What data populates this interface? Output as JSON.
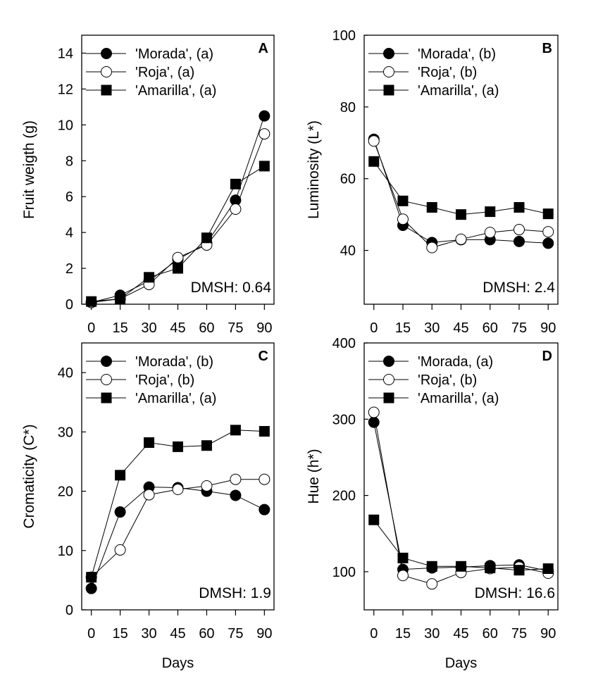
{
  "chart_data": [
    {
      "type": "line",
      "panel_label": "A",
      "xlabel": "",
      "ylabel": "Fruit weigth (g)",
      "x": [
        0,
        15,
        30,
        45,
        60,
        75,
        90
      ],
      "xlim": [
        -5,
        95
      ],
      "ylim": [
        0,
        15
      ],
      "yticks": [
        0,
        2,
        4,
        6,
        8,
        10,
        12,
        14
      ],
      "annotation": "DMSH: 0.64",
      "grid": false,
      "legend_position": "top-left",
      "series": [
        {
          "name": "'Morada', (a)",
          "marker": "filled-circle",
          "values": [
            0.1,
            0.5,
            1.3,
            2.5,
            3.4,
            5.8,
            10.5
          ]
        },
        {
          "name": "'Roja', (a)",
          "marker": "open-circle",
          "values": [
            0.1,
            0.3,
            1.1,
            2.6,
            3.3,
            5.3,
            9.5
          ]
        },
        {
          "name": "'Amarilla', (a)",
          "marker": "filled-square",
          "values": [
            0.15,
            0.3,
            1.5,
            2.0,
            3.7,
            6.7,
            7.7
          ]
        }
      ]
    },
    {
      "type": "line",
      "panel_label": "B",
      "xlabel": "",
      "ylabel": "Luminosity (L*)",
      "x": [
        0,
        15,
        30,
        45,
        60,
        75,
        90
      ],
      "xlim": [
        -5,
        95
      ],
      "ylim": [
        25,
        100
      ],
      "yticks": [
        40,
        60,
        80,
        100
      ],
      "annotation": "DMSH: 2.4",
      "grid": false,
      "legend_position": "top-left",
      "series": [
        {
          "name": "'Morada', (b)",
          "marker": "filled-circle",
          "values": [
            71,
            47,
            42.2,
            43,
            43,
            42.5,
            42
          ]
        },
        {
          "name": "'Roja', (b)",
          "marker": "open-circle",
          "values": [
            70.5,
            48.7,
            40.8,
            43.1,
            45,
            45.8,
            45.2
          ]
        },
        {
          "name": "'Amarilla', (a)",
          "marker": "filled-square",
          "values": [
            64.8,
            53.8,
            52,
            50,
            50.8,
            52,
            50.2
          ]
        }
      ]
    },
    {
      "type": "line",
      "panel_label": "C",
      "xlabel": "Days",
      "ylabel": "Cromaticity (C*)",
      "x": [
        0,
        15,
        30,
        45,
        60,
        75,
        90
      ],
      "xlim": [
        -5,
        95
      ],
      "ylim": [
        0,
        45
      ],
      "yticks": [
        0,
        10,
        20,
        30,
        40
      ],
      "annotation": "DMSH: 1.9",
      "grid": false,
      "legend_position": "top-left",
      "series": [
        {
          "name": "'Morada', (b)",
          "marker": "filled-circle",
          "values": [
            3.6,
            16.5,
            20.7,
            20.6,
            20.0,
            19.3,
            16.9
          ]
        },
        {
          "name": "'Roja', (b)",
          "marker": "open-circle",
          "values": [
            5.5,
            10.1,
            19.4,
            20.3,
            20.9,
            22.0,
            22.0
          ]
        },
        {
          "name": "'Amarilla', (a)",
          "marker": "filled-square",
          "values": [
            5.5,
            22.7,
            28.2,
            27.5,
            27.7,
            30.3,
            30.1
          ]
        }
      ]
    },
    {
      "type": "line",
      "panel_label": "D",
      "xlabel": "Days",
      "ylabel": "Hue (h*)",
      "x": [
        0,
        15,
        30,
        45,
        60,
        75,
        90
      ],
      "xlim": [
        -5,
        95
      ],
      "ylim": [
        50,
        400
      ],
      "yticks": [
        100,
        200,
        300,
        400
      ],
      "annotation": "DMSH: 16.6",
      "grid": false,
      "legend_position": "top-left",
      "series": [
        {
          "name": "'Morada, (a)",
          "marker": "filled-circle",
          "values": [
            296,
            103,
            105,
            106,
            108,
            109,
            101
          ]
        },
        {
          "name": "'Roja', (b)",
          "marker": "open-circle",
          "values": [
            309,
            95,
            84,
            99,
            104,
            106,
            98
          ]
        },
        {
          "name": "'Amarilla', (a)",
          "marker": "filled-square",
          "values": [
            168,
            118,
            107,
            107,
            105,
            102,
            104
          ]
        }
      ]
    }
  ]
}
